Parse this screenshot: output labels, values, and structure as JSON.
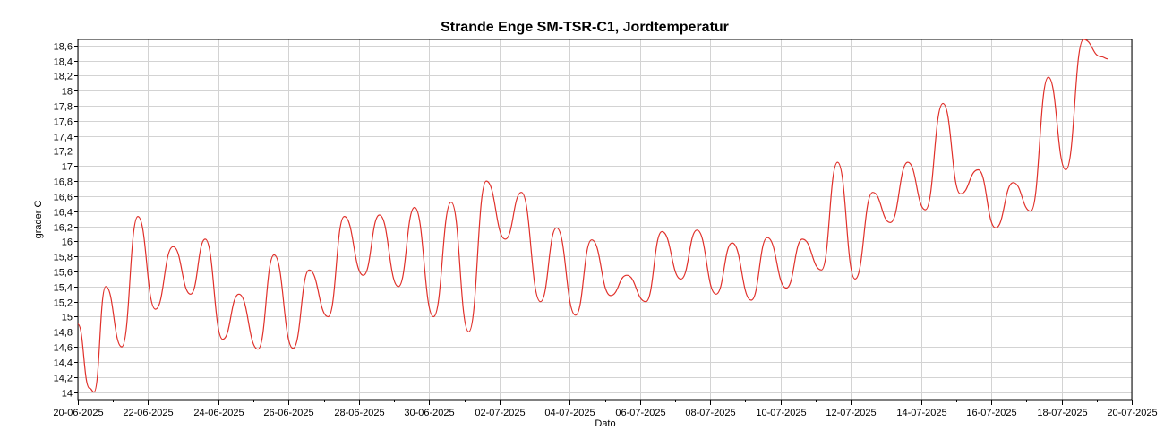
{
  "chart_data": {
    "type": "line",
    "title": "Strande Enge SM-TSR-C1, Jordtemperatur",
    "xlabel": "Dato",
    "ylabel": "grader C",
    "ylim": [
      13.9,
      18.68
    ],
    "xlim": [
      "2025-06-20",
      "2025-07-20"
    ],
    "grid": true,
    "y_ticks": [
      "14",
      "14,2",
      "14,4",
      "14,6",
      "14,8",
      "15",
      "15,2",
      "15,4",
      "15,6",
      "15,8",
      "16",
      "16,2",
      "16,4",
      "16,6",
      "16,8",
      "17",
      "17,2",
      "17,4",
      "17,6",
      "17,8",
      "18",
      "18,2",
      "18,4",
      "18,6"
    ],
    "x_ticks": [
      "20-06-2025",
      "22-06-2025",
      "24-06-2025",
      "26-06-2025",
      "28-06-2025",
      "30-06-2025",
      "02-07-2025",
      "04-07-2025",
      "06-07-2025",
      "08-07-2025",
      "10-07-2025",
      "12-07-2025",
      "14-07-2025",
      "16-07-2025",
      "18-07-2025",
      "20-07-2025"
    ],
    "series": [
      {
        "color": "#e0302a",
        "x": [
          "2025-06-20 00:00",
          "2025-06-20 08:00",
          "2025-06-20 11:00",
          "2025-06-20 19:00",
          "2025-06-21 06:00",
          "2025-06-21 17:00",
          "2025-06-22 05:00",
          "2025-06-22 17:00",
          "2025-06-23 05:00",
          "2025-06-23 15:00",
          "2025-06-24 03:00",
          "2025-06-24 14:00",
          "2025-06-25 03:00",
          "2025-06-25 14:00",
          "2025-06-26 03:00",
          "2025-06-26 14:00",
          "2025-06-27 03:00",
          "2025-06-27 14:00",
          "2025-06-28 03:00",
          "2025-06-28 14:00",
          "2025-06-29 03:00",
          "2025-06-29 14:00",
          "2025-06-30 03:00",
          "2025-06-30 15:00",
          "2025-07-01 03:00",
          "2025-07-01 15:00",
          "2025-07-02 04:00",
          "2025-07-02 15:00",
          "2025-07-03 04:00",
          "2025-07-03 15:00",
          "2025-07-04 04:00",
          "2025-07-04 15:00",
          "2025-07-05 04:00",
          "2025-07-05 15:00",
          "2025-07-06 04:00",
          "2025-07-06 15:00",
          "2025-07-07 04:00",
          "2025-07-07 15:00",
          "2025-07-08 04:00",
          "2025-07-08 15:00",
          "2025-07-09 04:00",
          "2025-07-09 15:00",
          "2025-07-10 04:00",
          "2025-07-10 15:00",
          "2025-07-11 04:00",
          "2025-07-11 15:00",
          "2025-07-12 03:00",
          "2025-07-12 15:00",
          "2025-07-13 03:00",
          "2025-07-13 15:00",
          "2025-07-14 03:00",
          "2025-07-14 15:00",
          "2025-07-15 03:00",
          "2025-07-15 15:00",
          "2025-07-16 03:00",
          "2025-07-16 15:00",
          "2025-07-17 03:00",
          "2025-07-17 15:00",
          "2025-07-18 03:00",
          "2025-07-18 15:00",
          "2025-07-19 03:00",
          "2025-07-19 08:00"
        ],
        "y": [
          14.9,
          14.05,
          14.0,
          15.4,
          14.6,
          16.33,
          15.1,
          15.93,
          15.3,
          16.03,
          14.7,
          15.3,
          14.57,
          15.82,
          14.58,
          15.62,
          15.0,
          16.33,
          15.55,
          16.35,
          15.4,
          16.45,
          15.0,
          16.52,
          14.8,
          16.8,
          16.03,
          16.65,
          15.2,
          16.18,
          15.02,
          16.02,
          15.28,
          15.55,
          15.2,
          16.13,
          15.5,
          16.15,
          15.3,
          15.98,
          15.22,
          16.05,
          15.38,
          16.03,
          15.62,
          17.05,
          15.5,
          16.65,
          16.25,
          17.05,
          16.42,
          17.83,
          16.63,
          16.95,
          16.18,
          16.78,
          16.4,
          18.18,
          16.95,
          18.68,
          18.45,
          18.42
        ]
      }
    ]
  }
}
